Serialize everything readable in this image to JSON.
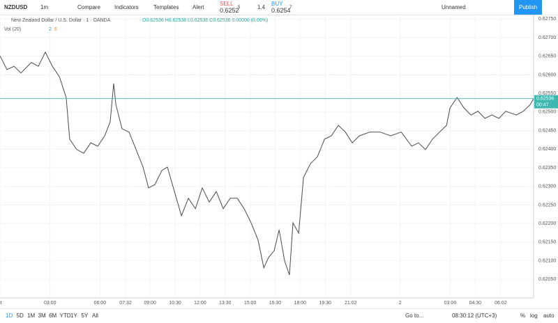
{
  "toolbar": {
    "symbol": "NZDUSD",
    "interval": "1m",
    "compare": "Compare",
    "indicators": "Indicators",
    "templates": "Templates",
    "alert": "Alert",
    "sell_label": "SELL",
    "sell_price": "0.6252",
    "sell_sup": "5",
    "spread": "1.4",
    "buy_label": "BUY",
    "buy_price": "0.6254",
    "buy_sup": "7",
    "layout_name": "Unnamed",
    "publish": "Publish"
  },
  "legend": {
    "instrument": "New Zealand Dollar / U.S. Dollar · 1 · OANDA",
    "ohlc": "O0.62536 H0.62538 L0.62536 C0.62536 0.00000 (0.00%)",
    "volume": "Vol (20)",
    "vol_a": "2",
    "vol_b": "6"
  },
  "bottom_bar": {
    "ranges": [
      "1D",
      "5D",
      "1M",
      "3M",
      "6M",
      "YTD",
      "1Y",
      "5Y",
      "All"
    ],
    "goto": "Go to...",
    "clock": "08:30:12 (UTC+3)",
    "percent": "%",
    "log": "log",
    "auto": "auto"
  },
  "chart_data": {
    "type": "line",
    "color": "#4a4a4a",
    "x": [
      0,
      0.42,
      0.84,
      1.26,
      1.88,
      2.3,
      2.72,
      3.14,
      3.56,
      3.97,
      4.18,
      4.6,
      5.02,
      5.44,
      5.86,
      6.28,
      6.61,
      6.82,
      6.95,
      7.32,
      7.74,
      8.16,
      8.58,
      8.91,
      9.29,
      9.71,
      10.04,
      10.46,
      10.88,
      11.3,
      11.72,
      12.13,
      12.55,
      12.97,
      13.39,
      13.81,
      14.23,
      14.64,
      15.06,
      15.48,
      15.82,
      16.11,
      16.44,
      16.74,
      17.07,
      17.36,
      17.57,
      17.91,
      18.2,
      18.62,
      19.04,
      19.46,
      19.87,
      20.29,
      20.71,
      21.13,
      21.55,
      22.18,
      22.8,
      23.43,
      24.06,
      24.69,
      25.1,
      25.52,
      25.94,
      26.36,
      26.78,
      26.99,
      27.41,
      27.82,
      28.24,
      28.66,
      29.08,
      29.5,
      29.92,
      30.33,
      30.96,
      31.38,
      31.8,
      32
    ],
    "values": [
      0.62651,
      0.62614,
      0.62623,
      0.62605,
      0.62633,
      0.62623,
      0.62661,
      0.62623,
      0.62595,
      0.62539,
      0.62427,
      0.62399,
      0.62389,
      0.62417,
      0.62408,
      0.62436,
      0.62474,
      0.62577,
      0.6252,
      0.62455,
      0.62446,
      0.62399,
      0.62352,
      0.62296,
      0.62305,
      0.62343,
      0.62352,
      0.62286,
      0.62221,
      0.62268,
      0.6224,
      0.62296,
      0.62258,
      0.62286,
      0.6224,
      0.62268,
      0.62268,
      0.6224,
      0.62202,
      0.62155,
      0.62081,
      0.62109,
      0.62127,
      0.62183,
      0.62099,
      0.62062,
      0.62202,
      0.62174,
      0.62324,
      0.62361,
      0.6238,
      0.62427,
      0.62436,
      0.62464,
      0.62446,
      0.62417,
      0.62436,
      0.62446,
      0.62446,
      0.62436,
      0.62446,
      0.62408,
      0.62417,
      0.62399,
      0.62427,
      0.62446,
      0.62464,
      0.62511,
      0.62539,
      0.62511,
      0.62492,
      0.62502,
      0.62483,
      0.62492,
      0.62483,
      0.62502,
      0.62492,
      0.62502,
      0.6252,
      0.62536
    ],
    "xlim": [
      0,
      32
    ],
    "xticks": [
      {
        "value": 0,
        "label": "ct"
      },
      {
        "value": 3,
        "label": "03:00"
      },
      {
        "value": 6,
        "label": "06:00"
      },
      {
        "value": 7.53,
        "label": "07:32"
      },
      {
        "value": 9,
        "label": "09:00"
      },
      {
        "value": 10.5,
        "label": "10:30"
      },
      {
        "value": 12,
        "label": "12:00"
      },
      {
        "value": 13.5,
        "label": "13:30"
      },
      {
        "value": 15,
        "label": "15:00"
      },
      {
        "value": 16.5,
        "label": "16:30"
      },
      {
        "value": 18,
        "label": "18:00"
      },
      {
        "value": 19.5,
        "label": "19:30"
      },
      {
        "value": 21.03,
        "label": "21:02"
      },
      {
        "value": 24,
        "label": "2"
      },
      {
        "value": 27,
        "label": "03:00"
      },
      {
        "value": 28.5,
        "label": "04:30"
      },
      {
        "value": 30.03,
        "label": "06:02"
      }
    ],
    "ylim": [
      0.62,
      0.6276
    ],
    "yticks": [
      {
        "value": 0.6205,
        "label": "0.62050"
      },
      {
        "value": 0.621,
        "label": "0.62100"
      },
      {
        "value": 0.6215,
        "label": "0.62150"
      },
      {
        "value": 0.622,
        "label": "0.62200"
      },
      {
        "value": 0.6225,
        "label": "0.62250"
      },
      {
        "value": 0.623,
        "label": "0.62300"
      },
      {
        "value": 0.6235,
        "label": "0.62350"
      },
      {
        "value": 0.624,
        "label": "0.62400"
      },
      {
        "value": 0.6245,
        "label": "0.62450"
      },
      {
        "value": 0.625,
        "label": "0.62500"
      },
      {
        "value": 0.6255,
        "label": "0.62550"
      },
      {
        "value": 0.626,
        "label": "0.62600"
      },
      {
        "value": 0.6265,
        "label": "0.62650"
      },
      {
        "value": 0.627,
        "label": "0.62700"
      },
      {
        "value": 0.6275,
        "label": "0.62750"
      }
    ],
    "grid": true,
    "last_price": {
      "value": 0.62536,
      "label": "0.62536",
      "countdown": "00:47",
      "color": "#3fb6b0"
    }
  }
}
